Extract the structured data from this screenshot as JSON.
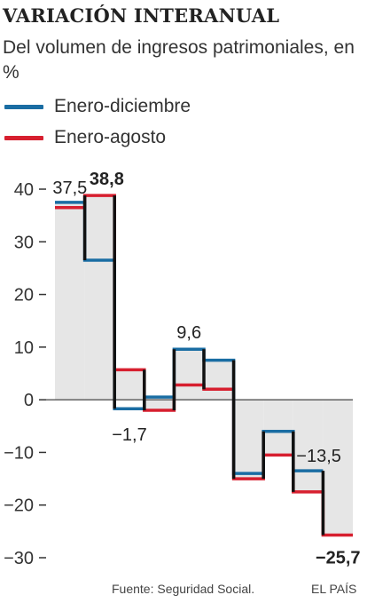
{
  "header": {
    "title": "VARIACIÓN INTERANUAL",
    "subtitle": "Del volumen de ingresos patrimoniales, en %"
  },
  "legend": [
    {
      "label": "Enero-diciembre",
      "color": "#1a6da3"
    },
    {
      "label": "Enero-agosto",
      "color": "#d71f2f"
    }
  ],
  "footer": {
    "source": "Fuente: Seguridad Social.",
    "brand": "EL PAÍS"
  },
  "chart_data": {
    "type": "line",
    "step": true,
    "title": "VARIACIÓN INTERANUAL",
    "ylim": [
      -30,
      40
    ],
    "yticks": [
      40,
      30,
      20,
      10,
      0,
      -10,
      -20,
      -30
    ],
    "periods": 10,
    "series": [
      {
        "name": "Enero-diciembre",
        "color": "#1a6da3",
        "values": [
          37.5,
          26.5,
          -1.7,
          0.5,
          9.6,
          7.5,
          -14.0,
          -6.0,
          -13.5,
          null
        ]
      },
      {
        "name": "Enero-agosto",
        "color": "#d71f2f",
        "values": [
          36.5,
          38.8,
          5.7,
          -2.0,
          2.8,
          2.0,
          -15.0,
          -10.5,
          -17.5,
          -25.7
        ]
      }
    ],
    "annotations": [
      {
        "text": "37,5",
        "bold": false
      },
      {
        "text": "38,8",
        "bold": true
      },
      {
        "text": "−1,7",
        "bold": false
      },
      {
        "text": "9,6",
        "bold": false
      },
      {
        "text": "−13,5",
        "bold": false
      },
      {
        "text": "−25,7",
        "bold": true
      }
    ],
    "fill_color": "#e6e6e6",
    "connector_color": "#111111"
  }
}
